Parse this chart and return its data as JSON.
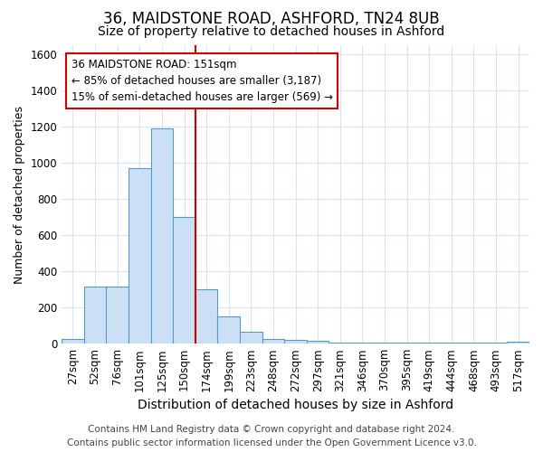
{
  "title1": "36, MAIDSTONE ROAD, ASHFORD, TN24 8UB",
  "title2": "Size of property relative to detached houses in Ashford",
  "xlabel": "Distribution of detached houses by size in Ashford",
  "ylabel": "Number of detached properties",
  "categories": [
    "27sqm",
    "52sqm",
    "76sqm",
    "101sqm",
    "125sqm",
    "150sqm",
    "174sqm",
    "199sqm",
    "223sqm",
    "248sqm",
    "272sqm",
    "297sqm",
    "321sqm",
    "346sqm",
    "370sqm",
    "395sqm",
    "419sqm",
    "444sqm",
    "468sqm",
    "493sqm",
    "517sqm"
  ],
  "values": [
    25,
    315,
    315,
    970,
    1190,
    700,
    300,
    150,
    65,
    25,
    20,
    15,
    5,
    5,
    5,
    5,
    5,
    5,
    5,
    5,
    10
  ],
  "bar_color": "#cce0f5",
  "bar_edge_color": "#5599cc",
  "vline_color": "#cc0000",
  "annotation_line1": "36 MAIDSTONE ROAD: 151sqm",
  "annotation_line2": "← 85% of detached houses are smaller (3,187)",
  "annotation_line3": "15% of semi-detached houses are larger (569) →",
  "annotation_box_color": "#ffffff",
  "annotation_box_edge": "#cc0000",
  "ylim": [
    0,
    1650
  ],
  "yticks": [
    0,
    200,
    400,
    600,
    800,
    1000,
    1200,
    1400,
    1600
  ],
  "footer1": "Contains HM Land Registry data © Crown copyright and database right 2024.",
  "footer2": "Contains public sector information licensed under the Open Government Licence v3.0.",
  "background_color": "#ffffff",
  "plot_bg_color": "#ffffff",
  "grid_color": "#d8e4f0",
  "title1_fontsize": 12,
  "title2_fontsize": 10,
  "xlabel_fontsize": 10,
  "ylabel_fontsize": 9,
  "tick_fontsize": 8.5,
  "footer_fontsize": 7.5,
  "vline_bar_index": 5
}
